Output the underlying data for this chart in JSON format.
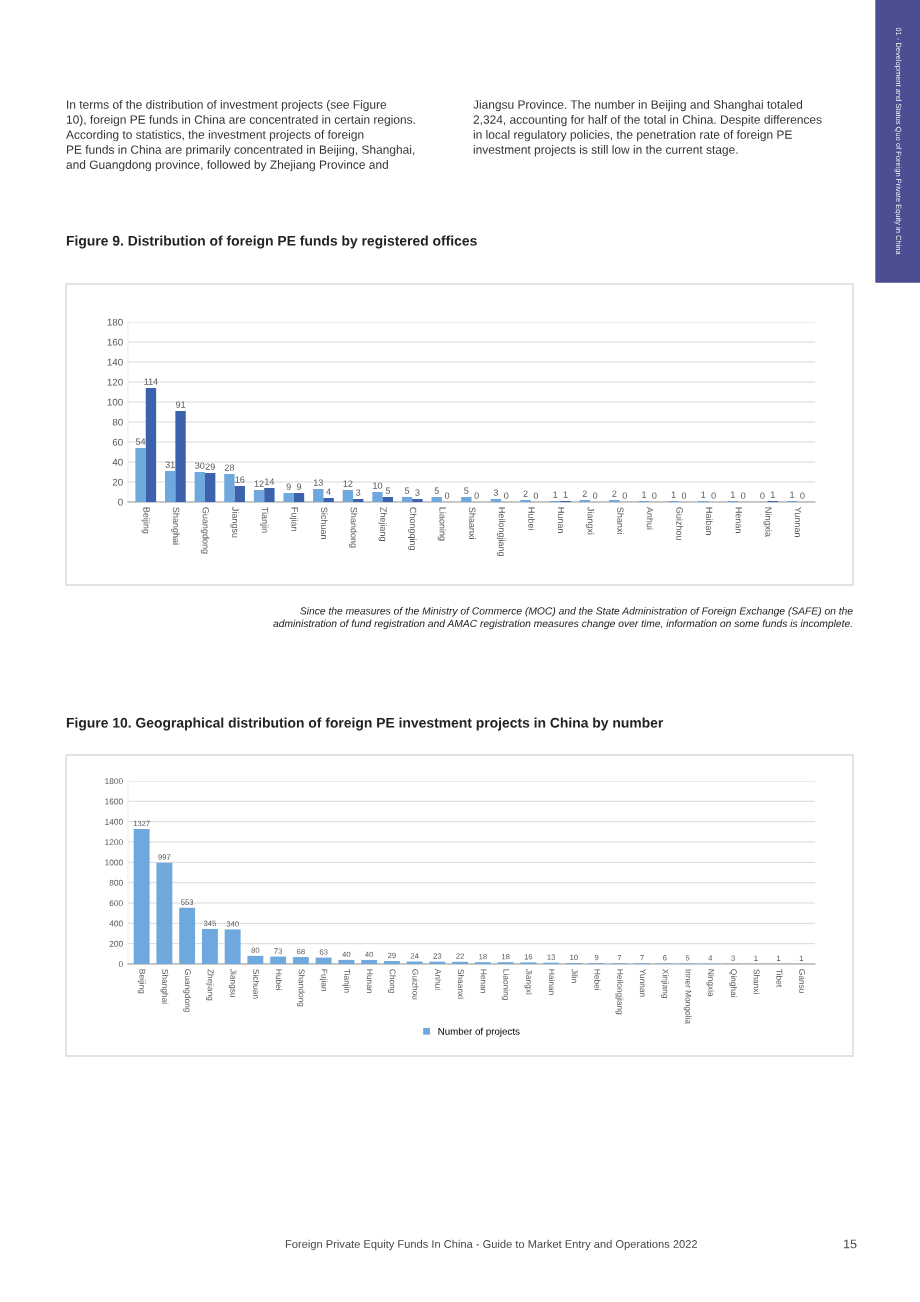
{
  "chart_data": [
    {
      "type": "bar",
      "title": "Figure 9. Distribution of foreign PE funds by registered offices",
      "categories": [
        "Beijing",
        "Shanghai",
        "Guangdong",
        "Jiangsu",
        "Tianjin",
        "Fujian",
        "Sichuan",
        "Shandong",
        "Zhejiang",
        "Chongqing",
        "Liaoning",
        "Shaanxi",
        "Heilongjiang",
        "Hubei",
        "Hunan",
        "Jiangxi",
        "Shanxi",
        "Anhui",
        "Guizhou",
        "Haiban",
        "Henan",
        "Ningxia",
        "Yunnan"
      ],
      "series": [
        {
          "color": "#6fa8dc",
          "values": [
            54,
            31,
            30,
            28,
            12,
            9,
            13,
            12,
            10,
            5,
            5,
            5,
            3,
            2,
            1,
            2,
            2,
            1,
            1,
            1,
            1,
            0,
            1
          ]
        },
        {
          "color": "#3d62ad",
          "values": [
            114,
            91,
            29,
            16,
            14,
            9,
            4,
            3,
            5,
            3,
            0,
            0,
            0,
            0,
            1,
            0,
            0,
            0,
            0,
            0,
            0,
            1,
            0
          ]
        }
      ],
      "ylim": [
        0,
        180
      ],
      "yticks": [
        0,
        20,
        40,
        60,
        80,
        100,
        120,
        140,
        160,
        180
      ],
      "grid": "y",
      "data_labels": true,
      "annotations": [
        "In terms of the distribution of investment projects (see Figure\n10), foreign PE funds in China are concentrated in certain regions.\nAccording to statistics, the investment projects of foreign\nPE funds in China are primarily concentrated in Beijing, Shanghai,\nand Guangdong province, followed by Zhejiang Province and",
        "Jiangsu Province. The number in Beijing and Shanghai totaled\n2,324, accounting for half of the total in China. Despite differences\nin local regulatory policies, the penetration rate of foreign PE\ninvestment projects is still low in the current stage.",
        "01 - Development and Status Quo of Foreign Private Equity in China",
        "Since the measures of the Ministry of Commerce (MOC) and the State Administration of Foreign Exchange (SAFE) on the\nadministration of fund registration and AMAC registration measures change over time, information on some funds is incomplete.",
        "Foreign Private Equity Funds In China - Guide to Market Entry and Operations 2022",
        "15"
      ]
    },
    {
      "type": "bar",
      "title": "Figure 10. Geographical distribution of foreign PE investment projects in China by number",
      "categories": [
        "Beijing",
        "Shanghai",
        "Guangdong",
        "Zhejiang",
        "Jiangsu",
        "Sichuan",
        "Hubei",
        "Shandong",
        "Fujian",
        "Tianjin",
        "Hunan",
        "Chong",
        "Guizhou",
        "Anhui",
        "Shaanxi",
        "Henan",
        "Liaoning",
        "Jiangxi",
        "Hainan",
        "Jilin",
        "Hebei",
        "Heilongjiang",
        "Yunnan",
        "Xinjiang",
        "Inner Mongolia",
        "Ningxia",
        "Qinghai",
        "Shanxi",
        "Tibet",
        "Gansu"
      ],
      "series": [
        {
          "name": "Number of projects",
          "color": "#6fa8dc",
          "values": [
            1327,
            997,
            553,
            345,
            340,
            80,
            73,
            68,
            63,
            40,
            40,
            29,
            24,
            23,
            22,
            18,
            18,
            16,
            13,
            10,
            9,
            7,
            7,
            6,
            5,
            4,
            3,
            1,
            1,
            1
          ]
        }
      ],
      "ylim": [
        0,
        1800
      ],
      "yticks": [
        0,
        200,
        400,
        600,
        800,
        1000,
        1200,
        1400,
        1600,
        1800
      ],
      "grid": "y",
      "data_labels": true,
      "legend": "bottom"
    }
  ]
}
